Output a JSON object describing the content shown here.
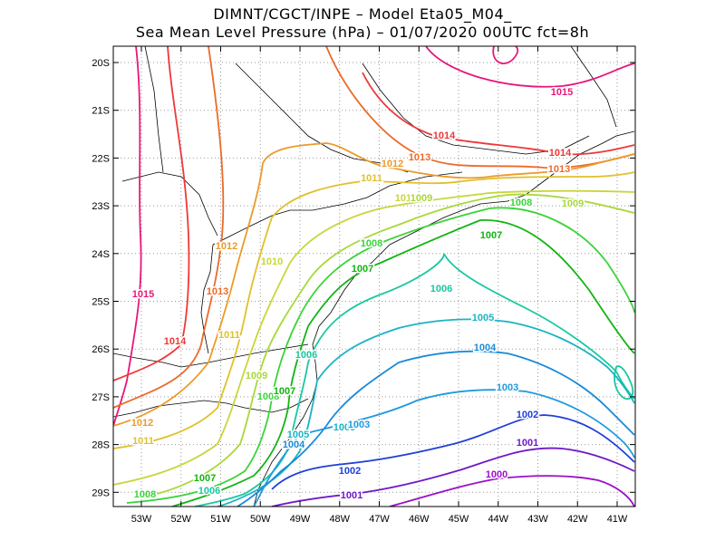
{
  "title": {
    "line1": "DIMNT/CGCT/INPE  –   Model Eta05_M04_",
    "line2": "Sea Mean Level Pressure (hPa) – 01/07/2020 00UTC fct=8h"
  },
  "axes": {
    "lat_labels": [
      "20S",
      "21S",
      "22S",
      "23S",
      "24S",
      "25S",
      "26S",
      "27S",
      "28S",
      "29S"
    ],
    "lon_labels": [
      "53W",
      "52W",
      "51W",
      "50W",
      "49W",
      "48W",
      "47W",
      "46W",
      "45W",
      "44W",
      "43W",
      "42W",
      "41W"
    ]
  },
  "contours": [
    {
      "label": "1015",
      "color": "#e8167a"
    },
    {
      "label": "1014",
      "color": "#ee3838"
    },
    {
      "label": "1013",
      "color": "#ec6a2a"
    },
    {
      "label": "1012",
      "color": "#ec9a2a"
    },
    {
      "label": "1011",
      "color": "#e0c02a"
    },
    {
      "label": "1010",
      "color": "#c8d63a"
    },
    {
      "label": "1009",
      "color": "#a8d83a"
    },
    {
      "label": "1008",
      "color": "#3ad43a"
    },
    {
      "label": "1007",
      "color": "#12b412"
    },
    {
      "label": "1006",
      "color": "#18c8a0"
    },
    {
      "label": "1005",
      "color": "#1ab4c4"
    },
    {
      "label": "1004",
      "color": "#1a8ad8"
    },
    {
      "label": "1003",
      "color": "#1e9ae0"
    },
    {
      "label": "1002",
      "color": "#2040d8"
    },
    {
      "label": "1001",
      "color": "#7018c8"
    },
    {
      "label": "1000",
      "color": "#9a10c8"
    }
  ],
  "contour_labels": [
    {
      "text": "1015",
      "ref": 0
    },
    {
      "text": "1015",
      "ref": 0
    },
    {
      "text": "1014",
      "ref": 1
    },
    {
      "text": "1014",
      "ref": 1
    },
    {
      "text": "1014",
      "ref": 1
    },
    {
      "text": "1013",
      "ref": 2
    },
    {
      "text": "1013",
      "ref": 2
    },
    {
      "text": "1013",
      "ref": 2
    },
    {
      "text": "1012",
      "ref": 3
    },
    {
      "text": "1012",
      "ref": 3
    },
    {
      "text": "1012",
      "ref": 3
    },
    {
      "text": "1011",
      "ref": 4
    },
    {
      "text": "1011",
      "ref": 4
    },
    {
      "text": "1011",
      "ref": 4
    },
    {
      "text": "1010",
      "ref": 5
    },
    {
      "text": "1010",
      "ref": 5
    },
    {
      "text": "1009",
      "ref": 6
    },
    {
      "text": "1009",
      "ref": 6
    },
    {
      "text": "1009",
      "ref": 6
    },
    {
      "text": "1008",
      "ref": 7
    },
    {
      "text": "1008",
      "ref": 7
    },
    {
      "text": "1008",
      "ref": 7
    },
    {
      "text": "1008",
      "ref": 7
    },
    {
      "text": "1007",
      "ref": 8
    },
    {
      "text": "1007",
      "ref": 8
    },
    {
      "text": "1007",
      "ref": 8
    },
    {
      "text": "1007",
      "ref": 8
    },
    {
      "text": "1006",
      "ref": 9
    },
    {
      "text": "1006",
      "ref": 9
    },
    {
      "text": "1006",
      "ref": 9
    },
    {
      "text": "1005",
      "ref": 10
    },
    {
      "text": "1005",
      "ref": 10
    },
    {
      "text": "1005",
      "ref": 10
    },
    {
      "text": "1004",
      "ref": 11
    },
    {
      "text": "1004",
      "ref": 11
    },
    {
      "text": "1003",
      "ref": 12
    },
    {
      "text": "1003",
      "ref": 12
    },
    {
      "text": "1002",
      "ref": 13
    },
    {
      "text": "1002",
      "ref": 13
    },
    {
      "text": "1001",
      "ref": 14
    },
    {
      "text": "1001",
      "ref": 14
    },
    {
      "text": "1000",
      "ref": 15
    }
  ]
}
